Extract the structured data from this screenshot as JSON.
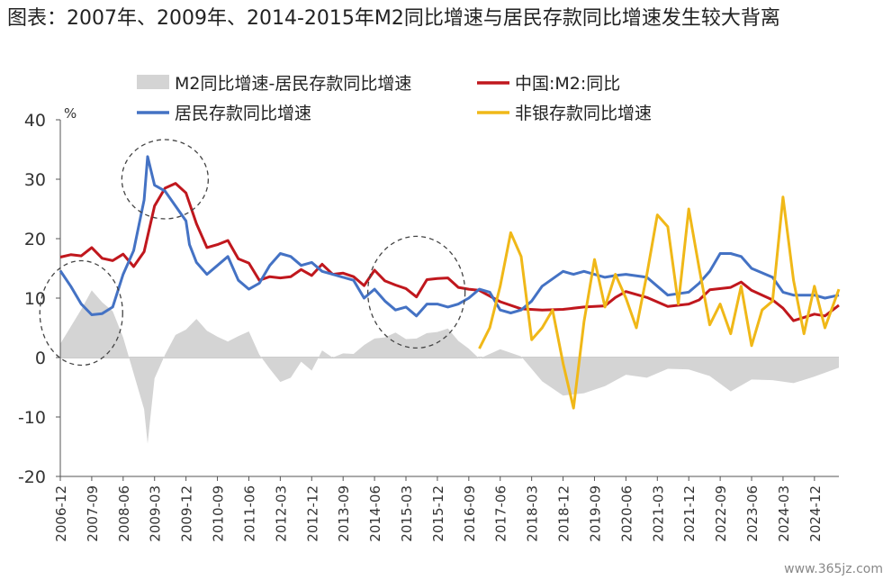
{
  "chart_data": {
    "type": "line",
    "title": "图表：2007年、2009年、2014-2015年M2同比增速与居民存款同比增速发生较大背离",
    "ylabel": "%",
    "ylim": [
      -20,
      40
    ],
    "yticks": [
      40,
      30,
      20,
      10,
      0,
      -10,
      -20
    ],
    "xrange": [
      "2006-12",
      "2025-07"
    ],
    "xticks": [
      "2006-12",
      "2007-09",
      "2008-06",
      "2009-03",
      "2009-12",
      "2010-09",
      "2011-06",
      "2012-03",
      "2012-12",
      "2013-09",
      "2014-06",
      "2015-03",
      "2015-12",
      "2016-09",
      "2017-06",
      "2018-03",
      "2018-12",
      "2019-09",
      "2020-06",
      "2021-03",
      "2021-12",
      "2022-09",
      "2023-06",
      "2024-03",
      "2024-12"
    ],
    "legend": [
      "M2同比增速-居民存款同比增速",
      "中国:M2:同比",
      "居民存款同比增速",
      "非银存款同比增速"
    ],
    "series": [
      {
        "name": "中国:M2:同比",
        "color": "#c0171d",
        "kind": "line",
        "x": [
          "2006-12",
          "2007-03",
          "2007-06",
          "2007-09",
          "2007-12",
          "2008-03",
          "2008-06",
          "2008-09",
          "2008-12",
          "2009-03",
          "2009-06",
          "2009-09",
          "2009-12",
          "2010-03",
          "2010-06",
          "2010-09",
          "2010-12",
          "2011-03",
          "2011-06",
          "2011-09",
          "2011-12",
          "2012-03",
          "2012-06",
          "2012-09",
          "2012-12",
          "2013-03",
          "2013-06",
          "2013-09",
          "2013-12",
          "2014-03",
          "2014-06",
          "2014-09",
          "2014-12",
          "2015-03",
          "2015-06",
          "2015-09",
          "2015-12",
          "2016-03",
          "2016-06",
          "2016-09",
          "2016-12",
          "2017-06",
          "2017-12",
          "2018-06",
          "2018-12",
          "2019-06",
          "2019-12",
          "2020-03",
          "2020-06",
          "2020-12",
          "2021-06",
          "2021-12",
          "2022-03",
          "2022-06",
          "2022-12",
          "2023-03",
          "2023-06",
          "2023-12",
          "2024-03",
          "2024-06",
          "2024-12",
          "2025-03",
          "2025-07"
        ],
        "values": [
          16.9,
          17.3,
          17.1,
          18.5,
          16.7,
          16.3,
          17.4,
          15.3,
          17.8,
          25.5,
          28.5,
          29.3,
          27.7,
          22.5,
          18.5,
          19.0,
          19.7,
          16.6,
          15.9,
          13.0,
          13.6,
          13.4,
          13.6,
          14.8,
          13.8,
          15.7,
          14.0,
          14.2,
          13.6,
          12.1,
          14.7,
          12.9,
          12.2,
          11.6,
          10.2,
          13.1,
          13.3,
          13.4,
          11.8,
          11.5,
          11.3,
          9.4,
          8.2,
          8.0,
          8.1,
          8.5,
          8.7,
          10.1,
          11.1,
          10.1,
          8.6,
          9.0,
          9.7,
          11.4,
          11.8,
          12.7,
          11.3,
          9.7,
          8.3,
          6.2,
          7.3,
          7.0,
          8.8
        ]
      },
      {
        "name": "居民存款同比增速",
        "color": "#4472c4",
        "kind": "line",
        "x": [
          "2006-12",
          "2007-03",
          "2007-06",
          "2007-09",
          "2007-12",
          "2008-03",
          "2008-06",
          "2008-09",
          "2008-12",
          "2009-01",
          "2009-03",
          "2009-06",
          "2009-09",
          "2009-12",
          "2010-01",
          "2010-03",
          "2010-06",
          "2010-09",
          "2010-12",
          "2011-03",
          "2011-06",
          "2011-09",
          "2011-12",
          "2012-03",
          "2012-06",
          "2012-09",
          "2012-12",
          "2013-03",
          "2013-06",
          "2013-09",
          "2013-12",
          "2014-03",
          "2014-06",
          "2014-09",
          "2014-12",
          "2015-03",
          "2015-06",
          "2015-09",
          "2015-12",
          "2016-03",
          "2016-06",
          "2016-09",
          "2016-12",
          "2017-03",
          "2017-06",
          "2017-09",
          "2017-12",
          "2018-03",
          "2018-06",
          "2018-12",
          "2019-03",
          "2019-06",
          "2019-12",
          "2020-03",
          "2020-06",
          "2020-12",
          "2021-03",
          "2021-06",
          "2021-12",
          "2022-03",
          "2022-06",
          "2022-09",
          "2022-12",
          "2023-03",
          "2023-06",
          "2023-12",
          "2024-03",
          "2024-06",
          "2024-12",
          "2025-03",
          "2025-07"
        ],
        "values": [
          14.6,
          12.0,
          9.0,
          7.2,
          7.4,
          8.5,
          14.0,
          18.0,
          26.5,
          33.8,
          29.0,
          28.0,
          25.5,
          23.0,
          19.0,
          16.0,
          14.0,
          15.5,
          17.0,
          13.0,
          11.5,
          12.5,
          15.5,
          17.5,
          17.0,
          15.5,
          16.0,
          14.5,
          14.0,
          13.5,
          13.0,
          10.0,
          11.5,
          9.5,
          8.0,
          8.5,
          7.0,
          9.0,
          9.0,
          8.5,
          9.0,
          10.0,
          11.5,
          11.0,
          8.0,
          7.5,
          8.0,
          9.5,
          12.0,
          14.5,
          14.0,
          14.5,
          13.5,
          13.8,
          14.0,
          13.5,
          12.0,
          10.5,
          11.0,
          12.5,
          14.5,
          17.5,
          17.5,
          17.0,
          15.0,
          13.5,
          11.0,
          10.5,
          10.5,
          10.0,
          10.5
        ]
      },
      {
        "name": "非银存款同比增速",
        "color": "#f0b818",
        "kind": "line",
        "x": [
          "2016-12",
          "2017-03",
          "2017-06",
          "2017-09",
          "2017-12",
          "2018-03",
          "2018-06",
          "2018-09",
          "2018-12",
          "2019-03",
          "2019-06",
          "2019-09",
          "2019-12",
          "2020-03",
          "2020-06",
          "2020-09",
          "2020-12",
          "2021-03",
          "2021-06",
          "2021-09",
          "2021-12",
          "2022-03",
          "2022-06",
          "2022-09",
          "2022-12",
          "2023-03",
          "2023-06",
          "2023-09",
          "2023-12",
          "2024-03",
          "2024-06",
          "2024-09",
          "2024-12",
          "2025-03",
          "2025-07"
        ],
        "values": [
          1.5,
          5.0,
          12.0,
          21.0,
          17.0,
          3.0,
          5.0,
          8.0,
          -1.0,
          -8.5,
          6.0,
          16.5,
          8.5,
          14.0,
          10.0,
          5.0,
          14.0,
          24.0,
          22.0,
          9.0,
          25.0,
          15.0,
          5.5,
          9.0,
          4.0,
          12.0,
          2.0,
          8.0,
          9.5,
          27.0,
          13.0,
          4.0,
          12.0,
          5.0,
          11.5
        ]
      },
      {
        "name": "M2同比增速-居民存款同比增速",
        "color": "#d4d4d4",
        "kind": "area",
        "x": [
          "2006-12",
          "2007-06",
          "2007-09",
          "2007-12",
          "2008-03",
          "2008-06",
          "2008-09",
          "2008-12",
          "2009-01",
          "2009-03",
          "2009-06",
          "2009-09",
          "2009-12",
          "2010-03",
          "2010-06",
          "2010-09",
          "2010-12",
          "2011-03",
          "2011-06",
          "2011-09",
          "2011-12",
          "2012-03",
          "2012-06",
          "2012-09",
          "2012-12",
          "2013-03",
          "2013-06",
          "2013-09",
          "2013-12",
          "2014-03",
          "2014-06",
          "2014-09",
          "2014-12",
          "2015-03",
          "2015-06",
          "2015-09",
          "2015-12",
          "2016-03",
          "2016-06",
          "2016-09",
          "2016-12",
          "2017-06",
          "2017-12",
          "2018-06",
          "2018-12",
          "2019-06",
          "2019-12",
          "2020-06",
          "2020-12",
          "2021-06",
          "2021-12",
          "2022-06",
          "2022-12",
          "2023-06",
          "2023-12",
          "2024-06",
          "2024-12",
          "2025-07"
        ],
        "values": [
          2.3,
          8.1,
          11.3,
          9.3,
          7.8,
          3.4,
          -2.7,
          -8.7,
          -14.5,
          -3.5,
          0.5,
          3.8,
          4.7,
          6.5,
          4.5,
          3.5,
          2.7,
          3.6,
          4.4,
          0.5,
          -1.9,
          -4.1,
          -3.4,
          -0.7,
          -2.2,
          1.2,
          0.0,
          0.7,
          0.6,
          2.1,
          3.2,
          3.4,
          4.2,
          3.1,
          3.2,
          4.1,
          4.3,
          4.9,
          2.8,
          1.5,
          -0.2,
          1.4,
          0.2,
          -4.0,
          -6.4,
          -6.0,
          -4.8,
          -2.9,
          -3.4,
          -1.9,
          -2.0,
          -3.1,
          -5.7,
          -3.7,
          -3.8,
          -4.3,
          -3.2,
          -1.7
        ]
      }
    ],
    "annotations": [
      {
        "type": "dashed-ellipse",
        "near": "2007-06"
      },
      {
        "type": "dashed-ellipse",
        "near": "2009-06"
      },
      {
        "type": "dashed-ellipse",
        "near": "2015-06"
      }
    ]
  },
  "watermark": "www.365jz.com"
}
